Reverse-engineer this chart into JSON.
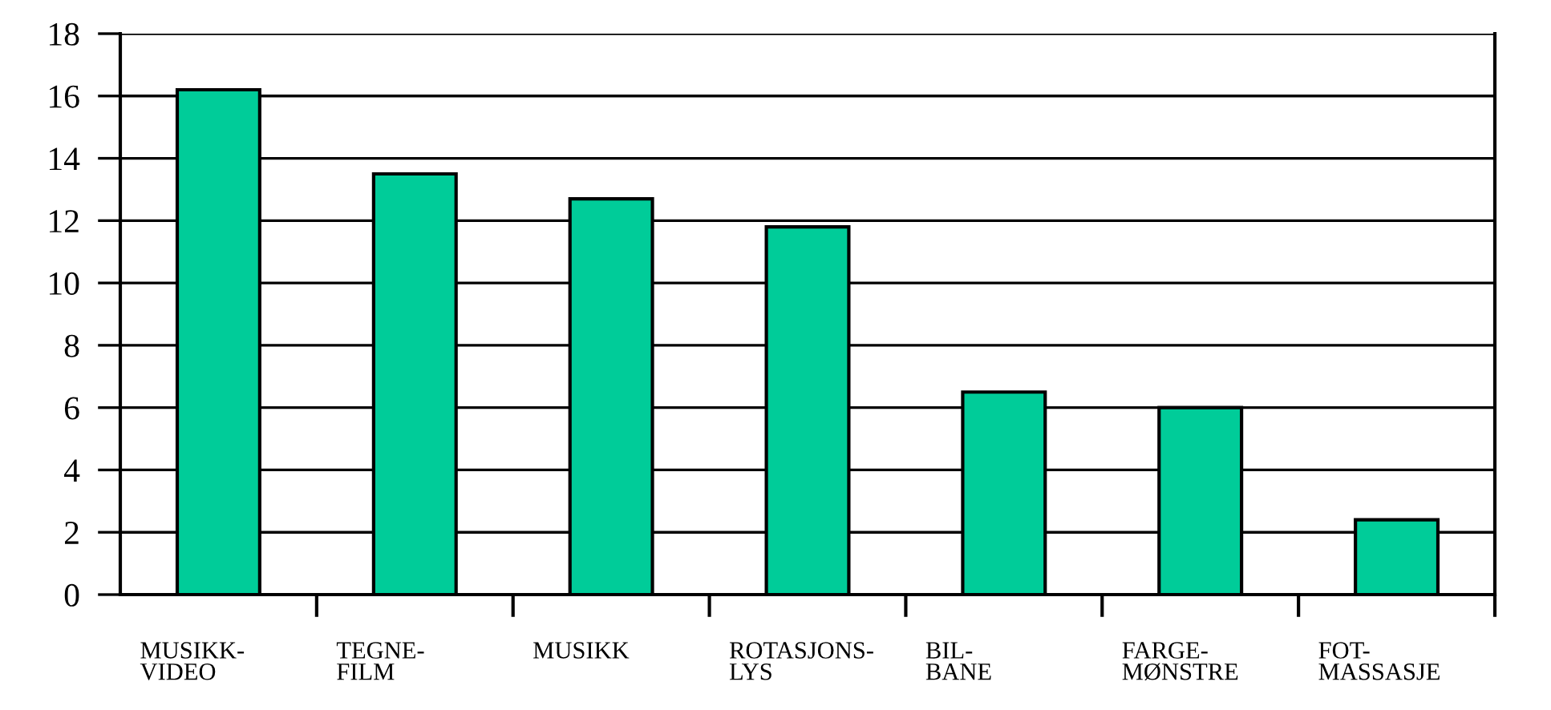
{
  "chart_data": {
    "type": "bar",
    "categories": [
      "MUSIKK-\nVIDEO",
      "TEGNE-\nFILM",
      "MUSIKK",
      "ROTASJONS-\nLYS",
      "BIL-\nBANE",
      "FARGE-\nMØNSTRE",
      "FOT-\nMASSASJE"
    ],
    "values": [
      16.2,
      13.5,
      12.7,
      11.8,
      6.5,
      6.0,
      2.4
    ],
    "color": "#00cc99",
    "ylim": [
      0,
      18
    ],
    "yticks": [
      0,
      2,
      4,
      6,
      8,
      10,
      12,
      14,
      16,
      18
    ],
    "grid": "y",
    "legend": false
  }
}
